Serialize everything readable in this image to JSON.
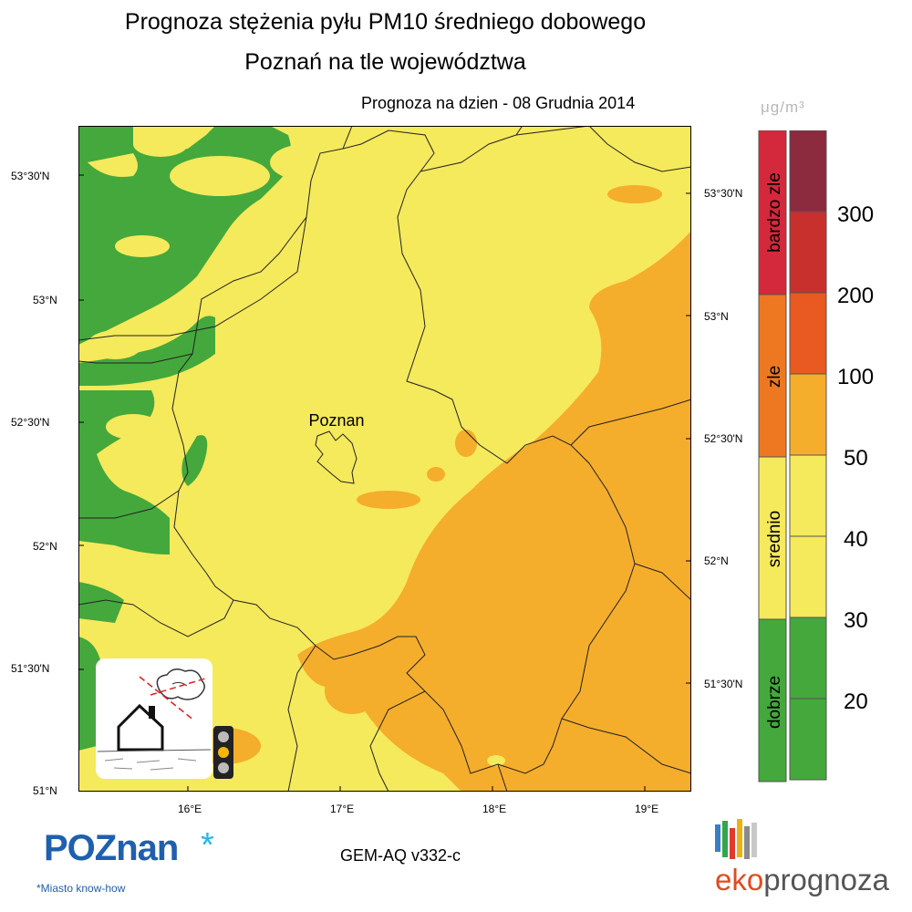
{
  "header": {
    "title_line1": "Prognoza stężenia pyłu PM10 średniego dobowego",
    "title_line2": "Poznań na tle województwa",
    "forecast_date": "Prognoza na dzien -  08 Grudnia 2014",
    "unit": "μg/m³"
  },
  "map": {
    "city_label": "Poznan",
    "lat_labels_left": [
      "53°30'N",
      "53°N",
      "52°30'N",
      "52°N",
      "51°30'N",
      "51°N"
    ],
    "lat_labels_right": [
      "53°30'N",
      "53°N",
      "52°30'N",
      "52°N",
      "51°30'N"
    ],
    "lon_labels": [
      "16°E",
      "17°E",
      "18°E",
      "19°E"
    ],
    "colors": {
      "dobrze": "#44a83c",
      "srednio": "#f5e95c",
      "zle": "#f5ad2c",
      "water_border": "#222222"
    }
  },
  "legend": {
    "categories": [
      {
        "label": "bardzo zle",
        "color": "#d4283c"
      },
      {
        "label": "zle",
        "color": "#ee7822"
      },
      {
        "label": "srednio",
        "color": "#f5e95c"
      },
      {
        "label": "dobrze",
        "color": "#44a83c"
      }
    ],
    "bins": [
      {
        "color": "#8c2a3e"
      },
      {
        "color": "#c8302e"
      },
      {
        "color": "#e85a22"
      },
      {
        "color": "#f5ad2c"
      },
      {
        "color": "#f5e95c"
      },
      {
        "color": "#f5e95c"
      },
      {
        "color": "#44a83c"
      },
      {
        "color": "#44a83c"
      }
    ],
    "thresholds": [
      "300",
      "200",
      "100",
      "50",
      "40",
      "30",
      "20"
    ]
  },
  "footer": {
    "model": "GEM-AQ v332-c",
    "poznan_logo_text": "POZnan",
    "poznan_logo_star": "*",
    "poznan_tagline": "*Miasto know-how",
    "eko_logo_prefix": "eko",
    "eko_logo_suffix": "prognoza"
  },
  "icons": {
    "traffic_light": "traffic-light-icon",
    "smog_house": "smog-house-icon"
  }
}
